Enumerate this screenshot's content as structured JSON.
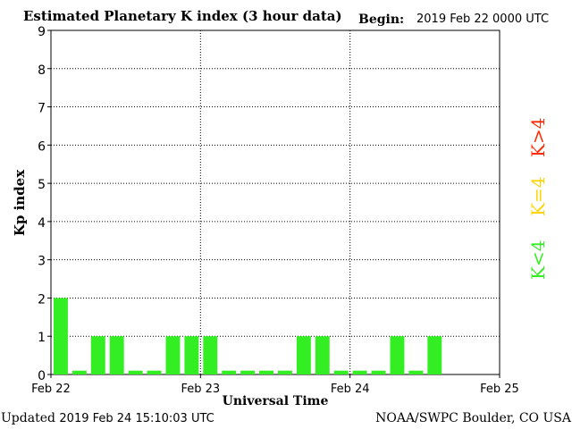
{
  "header": {
    "title": "Estimated Planetary K index (3 hour data)",
    "begin_label": "Begin:",
    "begin_value": "2019 Feb 22 0000 UTC"
  },
  "footer": {
    "updated_label": "Updated",
    "updated_value": "2019 Feb 24 15:10:03 UTC",
    "credit": "NOAA/SWPC Boulder, CO USA"
  },
  "legend": [
    {
      "label": "K>4",
      "color": "#ff2a00"
    },
    {
      "label": "K=4",
      "color": "#ffd400"
    },
    {
      "label": "K<4",
      "color": "#33ee22"
    }
  ],
  "chart_data": {
    "type": "bar",
    "title": "Estimated Planetary K index (3 hour data)",
    "xlabel": "Universal Time",
    "ylabel": "Kp index",
    "ylim": [
      0,
      9
    ],
    "yticks": [
      "0",
      "1",
      "2",
      "3",
      "4",
      "5",
      "6",
      "7",
      "8",
      "9"
    ],
    "xticks": [
      "Feb 22",
      "Feb 23",
      "Feb 24",
      "Feb 25"
    ],
    "grid": true,
    "bar_color": "#33ee22",
    "series": [
      {
        "values": [
          2,
          0.1,
          1,
          1,
          0.1,
          0.1,
          1,
          1,
          1,
          0.1,
          0.1,
          0.1,
          0.1,
          1,
          1,
          0.1,
          0.1,
          0.1,
          1,
          0.1,
          1
        ]
      }
    ]
  }
}
